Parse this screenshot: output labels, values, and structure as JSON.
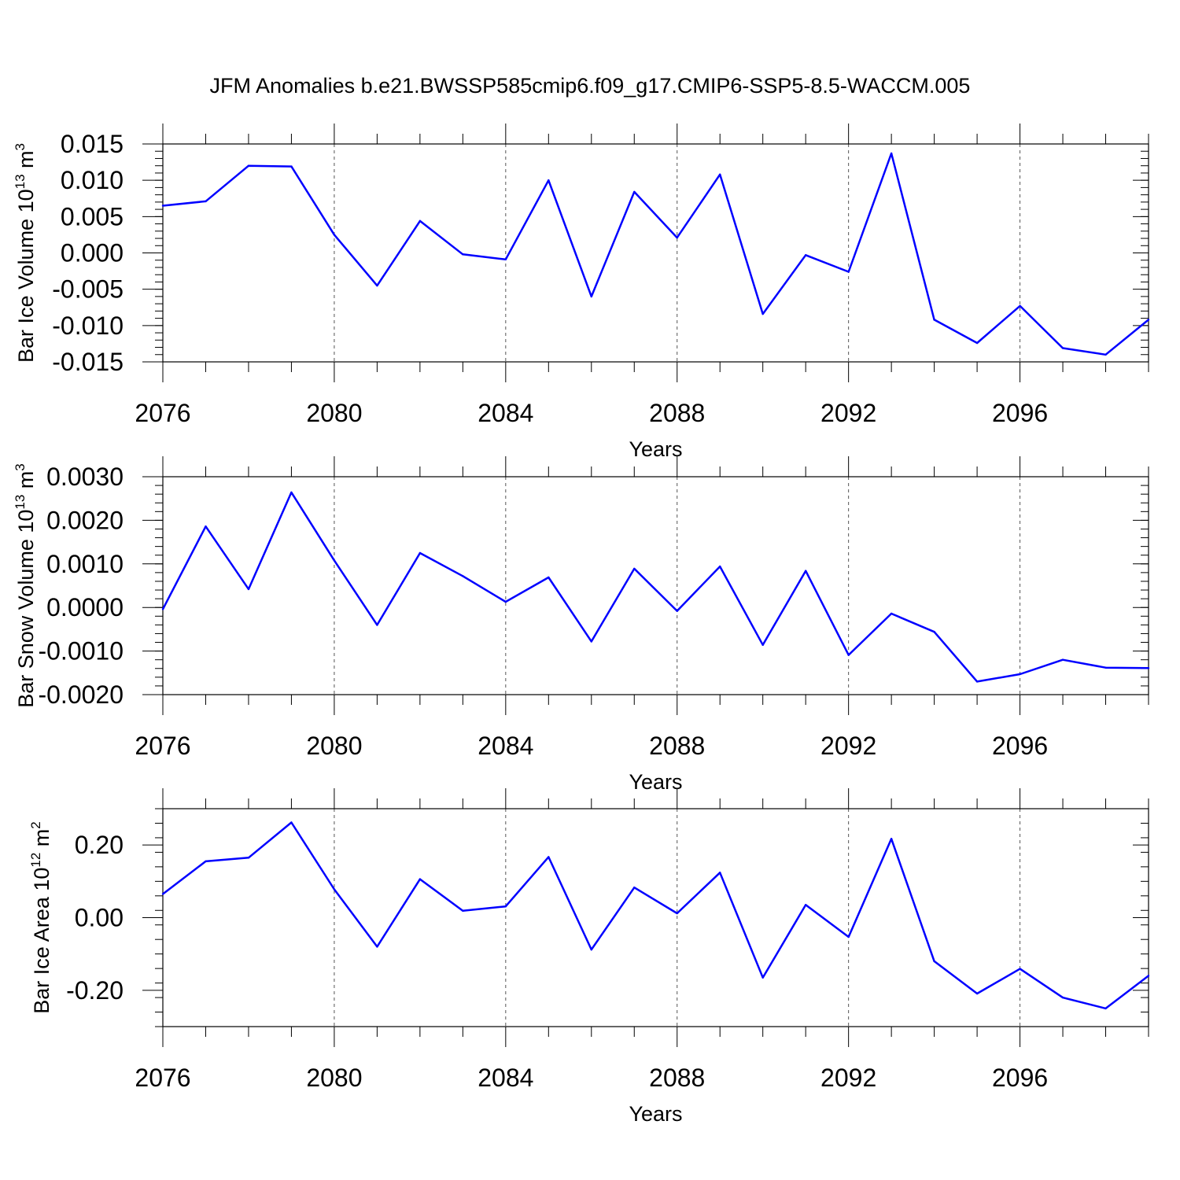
{
  "figure": {
    "title": "JFM Anomalies b.e21.BWSSP585cmip6.f09_g17.CMIP6-SSP5-8.5-WACCM.005"
  },
  "colors": {
    "line": "#0000ff",
    "axis": "#000000",
    "grid": "#555555",
    "background": "#ffffff"
  },
  "chart_data": [
    {
      "type": "line",
      "name": "ice-volume",
      "title": "JFM Anomalies b.e21.BWSSP585cmip6.f09_g17.CMIP6-SSP5-8.5-WACCM.005",
      "xlabel": "Years",
      "ylabel_base": "Bar Ice Volume 10",
      "ylabel_exp": "13",
      "ylabel_unit": " m",
      "ylabel_unit_exp": "3",
      "xlim": [
        2076,
        2099
      ],
      "ylim": [
        -0.015,
        0.015
      ],
      "xticks": [
        2076,
        2080,
        2084,
        2088,
        2092,
        2096
      ],
      "xtick_labels": [
        "2076",
        "2080",
        "2084",
        "2088",
        "2092",
        "2096"
      ],
      "yticks": [
        -0.015,
        -0.01,
        -0.005,
        0,
        0.005,
        0.01,
        0.015
      ],
      "ytick_labels": [
        "-0.015",
        "-0.010",
        "-0.005",
        "0.000",
        "0.005",
        "0.010",
        "0.015"
      ],
      "grid_x": [
        2080,
        2084,
        2088,
        2092,
        2096
      ],
      "x": [
        2076,
        2077,
        2078,
        2079,
        2080,
        2081,
        2082,
        2083,
        2084,
        2085,
        2086,
        2087,
        2088,
        2089,
        2090,
        2091,
        2092,
        2093,
        2094,
        2095,
        2096,
        2097,
        2098,
        2099
      ],
      "series": [
        {
          "name": "Bar Ice Volume",
          "values": [
            0.0065,
            0.0071,
            0.012,
            0.0119,
            0.0025,
            -0.0045,
            0.0044,
            -0.0002,
            -0.0009,
            0.01,
            -0.006,
            0.0084,
            0.0021,
            0.0108,
            -0.0084,
            -0.0003,
            -0.0026,
            0.0137,
            -0.0092,
            -0.0124,
            -0.0073,
            -0.0131,
            -0.014,
            -0.0092
          ]
        }
      ]
    },
    {
      "type": "line",
      "name": "snow-volume",
      "xlabel": "Years",
      "ylabel_base": "Bar Snow Volume 10",
      "ylabel_exp": "13",
      "ylabel_unit": " m",
      "ylabel_unit_exp": "3",
      "xlim": [
        2076,
        2099
      ],
      "ylim": [
        -0.002,
        0.003
      ],
      "xticks": [
        2076,
        2080,
        2084,
        2088,
        2092,
        2096
      ],
      "xtick_labels": [
        "2076",
        "2080",
        "2084",
        "2088",
        "2092",
        "2096"
      ],
      "yticks": [
        -0.002,
        -0.001,
        0,
        0.001,
        0.002,
        0.003
      ],
      "ytick_labels": [
        "-0.0020",
        "-0.0010",
        "0.0000",
        "0.0010",
        "0.0020",
        "0.0030"
      ],
      "grid_x": [
        2080,
        2084,
        2088,
        2092,
        2096
      ],
      "x": [
        2076,
        2077,
        2078,
        2079,
        2080,
        2081,
        2082,
        2083,
        2084,
        2085,
        2086,
        2087,
        2088,
        2089,
        2090,
        2091,
        2092,
        2093,
        2094,
        2095,
        2096,
        2097,
        2098,
        2099
      ],
      "series": [
        {
          "name": "Bar Snow Volume",
          "values": [
            -4e-05,
            0.00186,
            0.00042,
            0.00264,
            0.00108,
            -0.0004,
            0.00125,
            0.00072,
            0.00013,
            0.00069,
            -0.00078,
            0.00089,
            -8e-05,
            0.00094,
            -0.00086,
            0.00084,
            -0.00109,
            -0.00014,
            -0.00056,
            -0.0017,
            -0.00153,
            -0.0012,
            -0.00138,
            -0.00139
          ]
        }
      ]
    },
    {
      "type": "line",
      "name": "ice-area",
      "xlabel": "Years",
      "ylabel_base": "Bar Ice Area 10",
      "ylabel_exp": "12",
      "ylabel_unit": " m",
      "ylabel_unit_exp": "2",
      "xlim": [
        2076,
        2099
      ],
      "ylim": [
        -0.3,
        0.3
      ],
      "xticks": [
        2076,
        2080,
        2084,
        2088,
        2092,
        2096
      ],
      "xtick_labels": [
        "2076",
        "2080",
        "2084",
        "2088",
        "2092",
        "2096"
      ],
      "yticks": [
        -0.2,
        0,
        0.2
      ],
      "ytick_labels": [
        "-0.20",
        "0.00",
        "0.20"
      ],
      "grid_x": [
        2080,
        2084,
        2088,
        2092,
        2096
      ],
      "x": [
        2076,
        2077,
        2078,
        2079,
        2080,
        2081,
        2082,
        2083,
        2084,
        2085,
        2086,
        2087,
        2088,
        2089,
        2090,
        2091,
        2092,
        2093,
        2094,
        2095,
        2096,
        2097,
        2098,
        2099
      ],
      "series": [
        {
          "name": "Bar Ice Area",
          "values": [
            0.065,
            0.155,
            0.165,
            0.262,
            0.078,
            -0.08,
            0.106,
            0.019,
            0.031,
            0.167,
            -0.088,
            0.083,
            0.012,
            0.124,
            -0.165,
            0.035,
            -0.053,
            0.217,
            -0.12,
            -0.209,
            -0.141,
            -0.22,
            -0.25,
            -0.16
          ]
        }
      ]
    }
  ]
}
